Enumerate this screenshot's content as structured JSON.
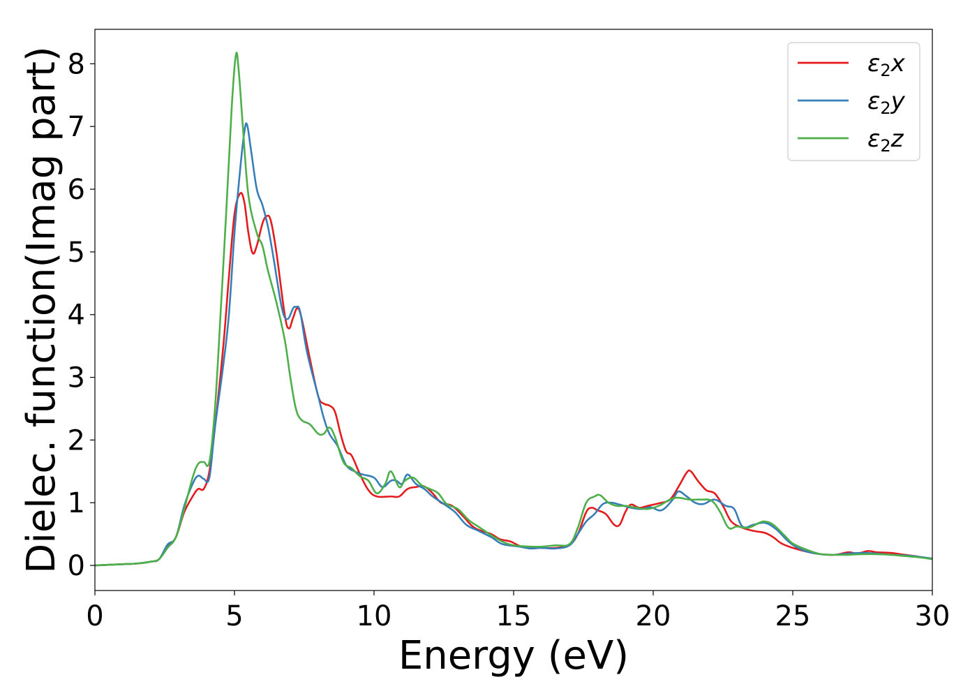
{
  "chart_data": {
    "type": "line",
    "title": "",
    "xlabel": "Energy (eV)",
    "ylabel": "Dielec. function(Imag part)",
    "xlim": [
      0,
      30
    ],
    "ylim": [
      -0.4,
      8.55
    ],
    "xticks": [
      0,
      5,
      10,
      15,
      20,
      25,
      30
    ],
    "yticks": [
      0,
      1,
      2,
      3,
      4,
      5,
      6,
      7,
      8
    ],
    "grid": false,
    "legend_position": "top-right",
    "series": [
      {
        "name": "ε₂x",
        "legend_base": "ε",
        "legend_sub": "2",
        "legend_var": "x",
        "color": "#e41a1c",
        "points": [
          [
            0,
            0
          ],
          [
            1,
            0.02
          ],
          [
            1.5,
            0.03
          ],
          [
            2,
            0.06
          ],
          [
            2.3,
            0.1
          ],
          [
            2.6,
            0.3
          ],
          [
            2.9,
            0.45
          ],
          [
            3.2,
            0.85
          ],
          [
            3.5,
            1.1
          ],
          [
            3.7,
            1.22
          ],
          [
            3.9,
            1.22
          ],
          [
            4.1,
            1.5
          ],
          [
            4.3,
            2.2
          ],
          [
            4.6,
            3.5
          ],
          [
            4.8,
            4.6
          ],
          [
            5.0,
            5.6
          ],
          [
            5.2,
            5.93
          ],
          [
            5.35,
            5.8
          ],
          [
            5.5,
            5.3
          ],
          [
            5.65,
            4.98
          ],
          [
            5.8,
            5.1
          ],
          [
            6.0,
            5.45
          ],
          [
            6.15,
            5.57
          ],
          [
            6.3,
            5.5
          ],
          [
            6.5,
            5.0
          ],
          [
            6.8,
            4.0
          ],
          [
            6.95,
            3.78
          ],
          [
            7.1,
            3.95
          ],
          [
            7.25,
            4.1
          ],
          [
            7.4,
            3.95
          ],
          [
            7.7,
            3.3
          ],
          [
            8.0,
            2.7
          ],
          [
            8.2,
            2.58
          ],
          [
            8.4,
            2.55
          ],
          [
            8.6,
            2.45
          ],
          [
            8.8,
            2.1
          ],
          [
            9.0,
            1.82
          ],
          [
            9.2,
            1.75
          ],
          [
            9.5,
            1.45
          ],
          [
            9.8,
            1.2
          ],
          [
            10.1,
            1.1
          ],
          [
            10.6,
            1.1
          ],
          [
            10.9,
            1.1
          ],
          [
            11.2,
            1.22
          ],
          [
            11.5,
            1.25
          ],
          [
            11.8,
            1.26
          ],
          [
            12.1,
            1.15
          ],
          [
            12.4,
            1.0
          ],
          [
            12.8,
            0.95
          ],
          [
            13.2,
            0.78
          ],
          [
            13.6,
            0.6
          ],
          [
            14.2,
            0.5
          ],
          [
            14.5,
            0.42
          ],
          [
            14.9,
            0.38
          ],
          [
            15.3,
            0.3
          ],
          [
            16.0,
            0.28
          ],
          [
            16.5,
            0.28
          ],
          [
            17.0,
            0.33
          ],
          [
            17.3,
            0.5
          ],
          [
            17.6,
            0.85
          ],
          [
            17.8,
            0.92
          ],
          [
            18.0,
            0.88
          ],
          [
            18.3,
            0.82
          ],
          [
            18.6,
            0.65
          ],
          [
            18.8,
            0.65
          ],
          [
            19.0,
            0.85
          ],
          [
            19.2,
            0.97
          ],
          [
            19.5,
            0.92
          ],
          [
            19.8,
            0.95
          ],
          [
            20.2,
            0.99
          ],
          [
            20.6,
            1.05
          ],
          [
            20.9,
            1.25
          ],
          [
            21.2,
            1.48
          ],
          [
            21.35,
            1.5
          ],
          [
            21.6,
            1.35
          ],
          [
            21.9,
            1.2
          ],
          [
            22.2,
            1.15
          ],
          [
            22.5,
            0.95
          ],
          [
            22.8,
            0.7
          ],
          [
            23.2,
            0.6
          ],
          [
            23.6,
            0.55
          ],
          [
            24.0,
            0.52
          ],
          [
            24.3,
            0.45
          ],
          [
            24.6,
            0.35
          ],
          [
            25.0,
            0.28
          ],
          [
            25.5,
            0.22
          ],
          [
            26.0,
            0.18
          ],
          [
            26.5,
            0.17
          ],
          [
            27.0,
            0.21
          ],
          [
            27.3,
            0.19
          ],
          [
            27.7,
            0.23
          ],
          [
            28.0,
            0.21
          ],
          [
            28.5,
            0.2
          ],
          [
            29.0,
            0.17
          ],
          [
            29.5,
            0.14
          ],
          [
            30,
            0.1
          ]
        ]
      },
      {
        "name": "ε₂y",
        "legend_base": "ε",
        "legend_sub": "2",
        "legend_var": "y",
        "color": "#377eb8",
        "points": [
          [
            0,
            0
          ],
          [
            1,
            0.02
          ],
          [
            1.5,
            0.03
          ],
          [
            2,
            0.06
          ],
          [
            2.3,
            0.1
          ],
          [
            2.6,
            0.33
          ],
          [
            2.9,
            0.45
          ],
          [
            3.2,
            0.95
          ],
          [
            3.5,
            1.3
          ],
          [
            3.7,
            1.43
          ],
          [
            3.9,
            1.38
          ],
          [
            4.1,
            1.4
          ],
          [
            4.3,
            2.2
          ],
          [
            4.6,
            3.2
          ],
          [
            4.8,
            4.0
          ],
          [
            5.0,
            5.3
          ],
          [
            5.2,
            6.3
          ],
          [
            5.35,
            6.9
          ],
          [
            5.45,
            7.03
          ],
          [
            5.6,
            6.6
          ],
          [
            5.8,
            6.0
          ],
          [
            6.0,
            5.75
          ],
          [
            6.2,
            5.4
          ],
          [
            6.4,
            4.9
          ],
          [
            6.7,
            4.1
          ],
          [
            6.9,
            3.93
          ],
          [
            7.1,
            4.1
          ],
          [
            7.2,
            4.12
          ],
          [
            7.35,
            4.05
          ],
          [
            7.6,
            3.4
          ],
          [
            8.0,
            2.7
          ],
          [
            8.2,
            2.35
          ],
          [
            8.4,
            2.1
          ],
          [
            8.7,
            1.9
          ],
          [
            9.0,
            1.6
          ],
          [
            9.3,
            1.5
          ],
          [
            9.6,
            1.45
          ],
          [
            10.0,
            1.4
          ],
          [
            10.3,
            1.25
          ],
          [
            10.6,
            1.35
          ],
          [
            10.8,
            1.35
          ],
          [
            11.0,
            1.3
          ],
          [
            11.2,
            1.45
          ],
          [
            11.5,
            1.3
          ],
          [
            11.8,
            1.22
          ],
          [
            12.1,
            1.1
          ],
          [
            12.5,
            0.98
          ],
          [
            12.9,
            0.85
          ],
          [
            13.3,
            0.65
          ],
          [
            13.7,
            0.56
          ],
          [
            14.2,
            0.45
          ],
          [
            14.6,
            0.34
          ],
          [
            15.2,
            0.3
          ],
          [
            15.6,
            0.27
          ],
          [
            16.0,
            0.28
          ],
          [
            16.5,
            0.27
          ],
          [
            17.0,
            0.32
          ],
          [
            17.3,
            0.5
          ],
          [
            17.6,
            0.7
          ],
          [
            17.9,
            0.82
          ],
          [
            18.2,
            0.98
          ],
          [
            18.5,
            1.0
          ],
          [
            18.8,
            0.97
          ],
          [
            19.2,
            0.92
          ],
          [
            19.6,
            0.9
          ],
          [
            19.9,
            0.93
          ],
          [
            20.3,
            0.88
          ],
          [
            20.7,
            1.05
          ],
          [
            20.9,
            1.18
          ],
          [
            21.2,
            1.1
          ],
          [
            21.5,
            1.0
          ],
          [
            21.8,
            0.98
          ],
          [
            22.2,
            1.05
          ],
          [
            22.6,
            0.95
          ],
          [
            22.9,
            0.9
          ],
          [
            23.2,
            0.62
          ],
          [
            23.6,
            0.65
          ],
          [
            24.0,
            0.68
          ],
          [
            24.4,
            0.58
          ],
          [
            24.8,
            0.4
          ],
          [
            25.1,
            0.3
          ],
          [
            25.5,
            0.22
          ],
          [
            26.0,
            0.18
          ],
          [
            26.5,
            0.17
          ],
          [
            27.0,
            0.19
          ],
          [
            27.5,
            0.2
          ],
          [
            28.0,
            0.19
          ],
          [
            28.5,
            0.17
          ],
          [
            29.0,
            0.16
          ],
          [
            29.5,
            0.14
          ],
          [
            30,
            0.11
          ]
        ]
      },
      {
        "name": "ε₂z",
        "legend_base": "ε",
        "legend_sub": "2",
        "legend_var": "z",
        "color": "#4daf4a",
        "points": [
          [
            0,
            0
          ],
          [
            1,
            0.02
          ],
          [
            1.5,
            0.03
          ],
          [
            2,
            0.06
          ],
          [
            2.3,
            0.1
          ],
          [
            2.6,
            0.28
          ],
          [
            2.9,
            0.45
          ],
          [
            3.2,
            0.9
          ],
          [
            3.5,
            1.4
          ],
          [
            3.7,
            1.62
          ],
          [
            3.9,
            1.65
          ],
          [
            4.1,
            1.65
          ],
          [
            4.3,
            2.5
          ],
          [
            4.5,
            4.0
          ],
          [
            4.7,
            5.6
          ],
          [
            4.9,
            7.3
          ],
          [
            5.05,
            8.14
          ],
          [
            5.15,
            7.9
          ],
          [
            5.3,
            7.0
          ],
          [
            5.5,
            5.9
          ],
          [
            5.8,
            5.3
          ],
          [
            6.0,
            5.1
          ],
          [
            6.2,
            4.7
          ],
          [
            6.5,
            4.2
          ],
          [
            6.8,
            3.6
          ],
          [
            7.0,
            3.0
          ],
          [
            7.2,
            2.5
          ],
          [
            7.4,
            2.32
          ],
          [
            7.7,
            2.25
          ],
          [
            8.0,
            2.1
          ],
          [
            8.2,
            2.1
          ],
          [
            8.4,
            2.2
          ],
          [
            8.6,
            2.05
          ],
          [
            8.9,
            1.65
          ],
          [
            9.2,
            1.55
          ],
          [
            9.5,
            1.42
          ],
          [
            9.8,
            1.35
          ],
          [
            10.1,
            1.15
          ],
          [
            10.4,
            1.3
          ],
          [
            10.6,
            1.5
          ],
          [
            10.9,
            1.25
          ],
          [
            11.1,
            1.35
          ],
          [
            11.4,
            1.4
          ],
          [
            11.7,
            1.28
          ],
          [
            12.0,
            1.22
          ],
          [
            12.3,
            1.15
          ],
          [
            12.6,
            0.98
          ],
          [
            13.0,
            0.9
          ],
          [
            13.4,
            0.72
          ],
          [
            13.8,
            0.6
          ],
          [
            14.2,
            0.48
          ],
          [
            14.6,
            0.38
          ],
          [
            15.0,
            0.32
          ],
          [
            15.6,
            0.3
          ],
          [
            16.0,
            0.3
          ],
          [
            16.5,
            0.32
          ],
          [
            17.0,
            0.34
          ],
          [
            17.3,
            0.6
          ],
          [
            17.6,
            1.0
          ],
          [
            17.9,
            1.1
          ],
          [
            18.1,
            1.12
          ],
          [
            18.4,
            1.0
          ],
          [
            18.7,
            0.95
          ],
          [
            19.0,
            0.95
          ],
          [
            19.4,
            0.92
          ],
          [
            19.8,
            0.9
          ],
          [
            20.2,
            0.95
          ],
          [
            20.6,
            1.05
          ],
          [
            20.9,
            1.08
          ],
          [
            21.3,
            1.05
          ],
          [
            21.7,
            1.05
          ],
          [
            22.1,
            1.03
          ],
          [
            22.4,
            0.85
          ],
          [
            22.7,
            0.6
          ],
          [
            23.0,
            0.62
          ],
          [
            23.4,
            0.6
          ],
          [
            23.8,
            0.68
          ],
          [
            24.0,
            0.7
          ],
          [
            24.3,
            0.65
          ],
          [
            24.7,
            0.48
          ],
          [
            25.0,
            0.35
          ],
          [
            25.5,
            0.25
          ],
          [
            26.0,
            0.18
          ],
          [
            26.5,
            0.17
          ],
          [
            27.0,
            0.17
          ],
          [
            27.5,
            0.18
          ],
          [
            28.0,
            0.18
          ],
          [
            28.5,
            0.17
          ],
          [
            29.0,
            0.15
          ],
          [
            29.5,
            0.13
          ],
          [
            30,
            0.1
          ]
        ]
      }
    ]
  }
}
